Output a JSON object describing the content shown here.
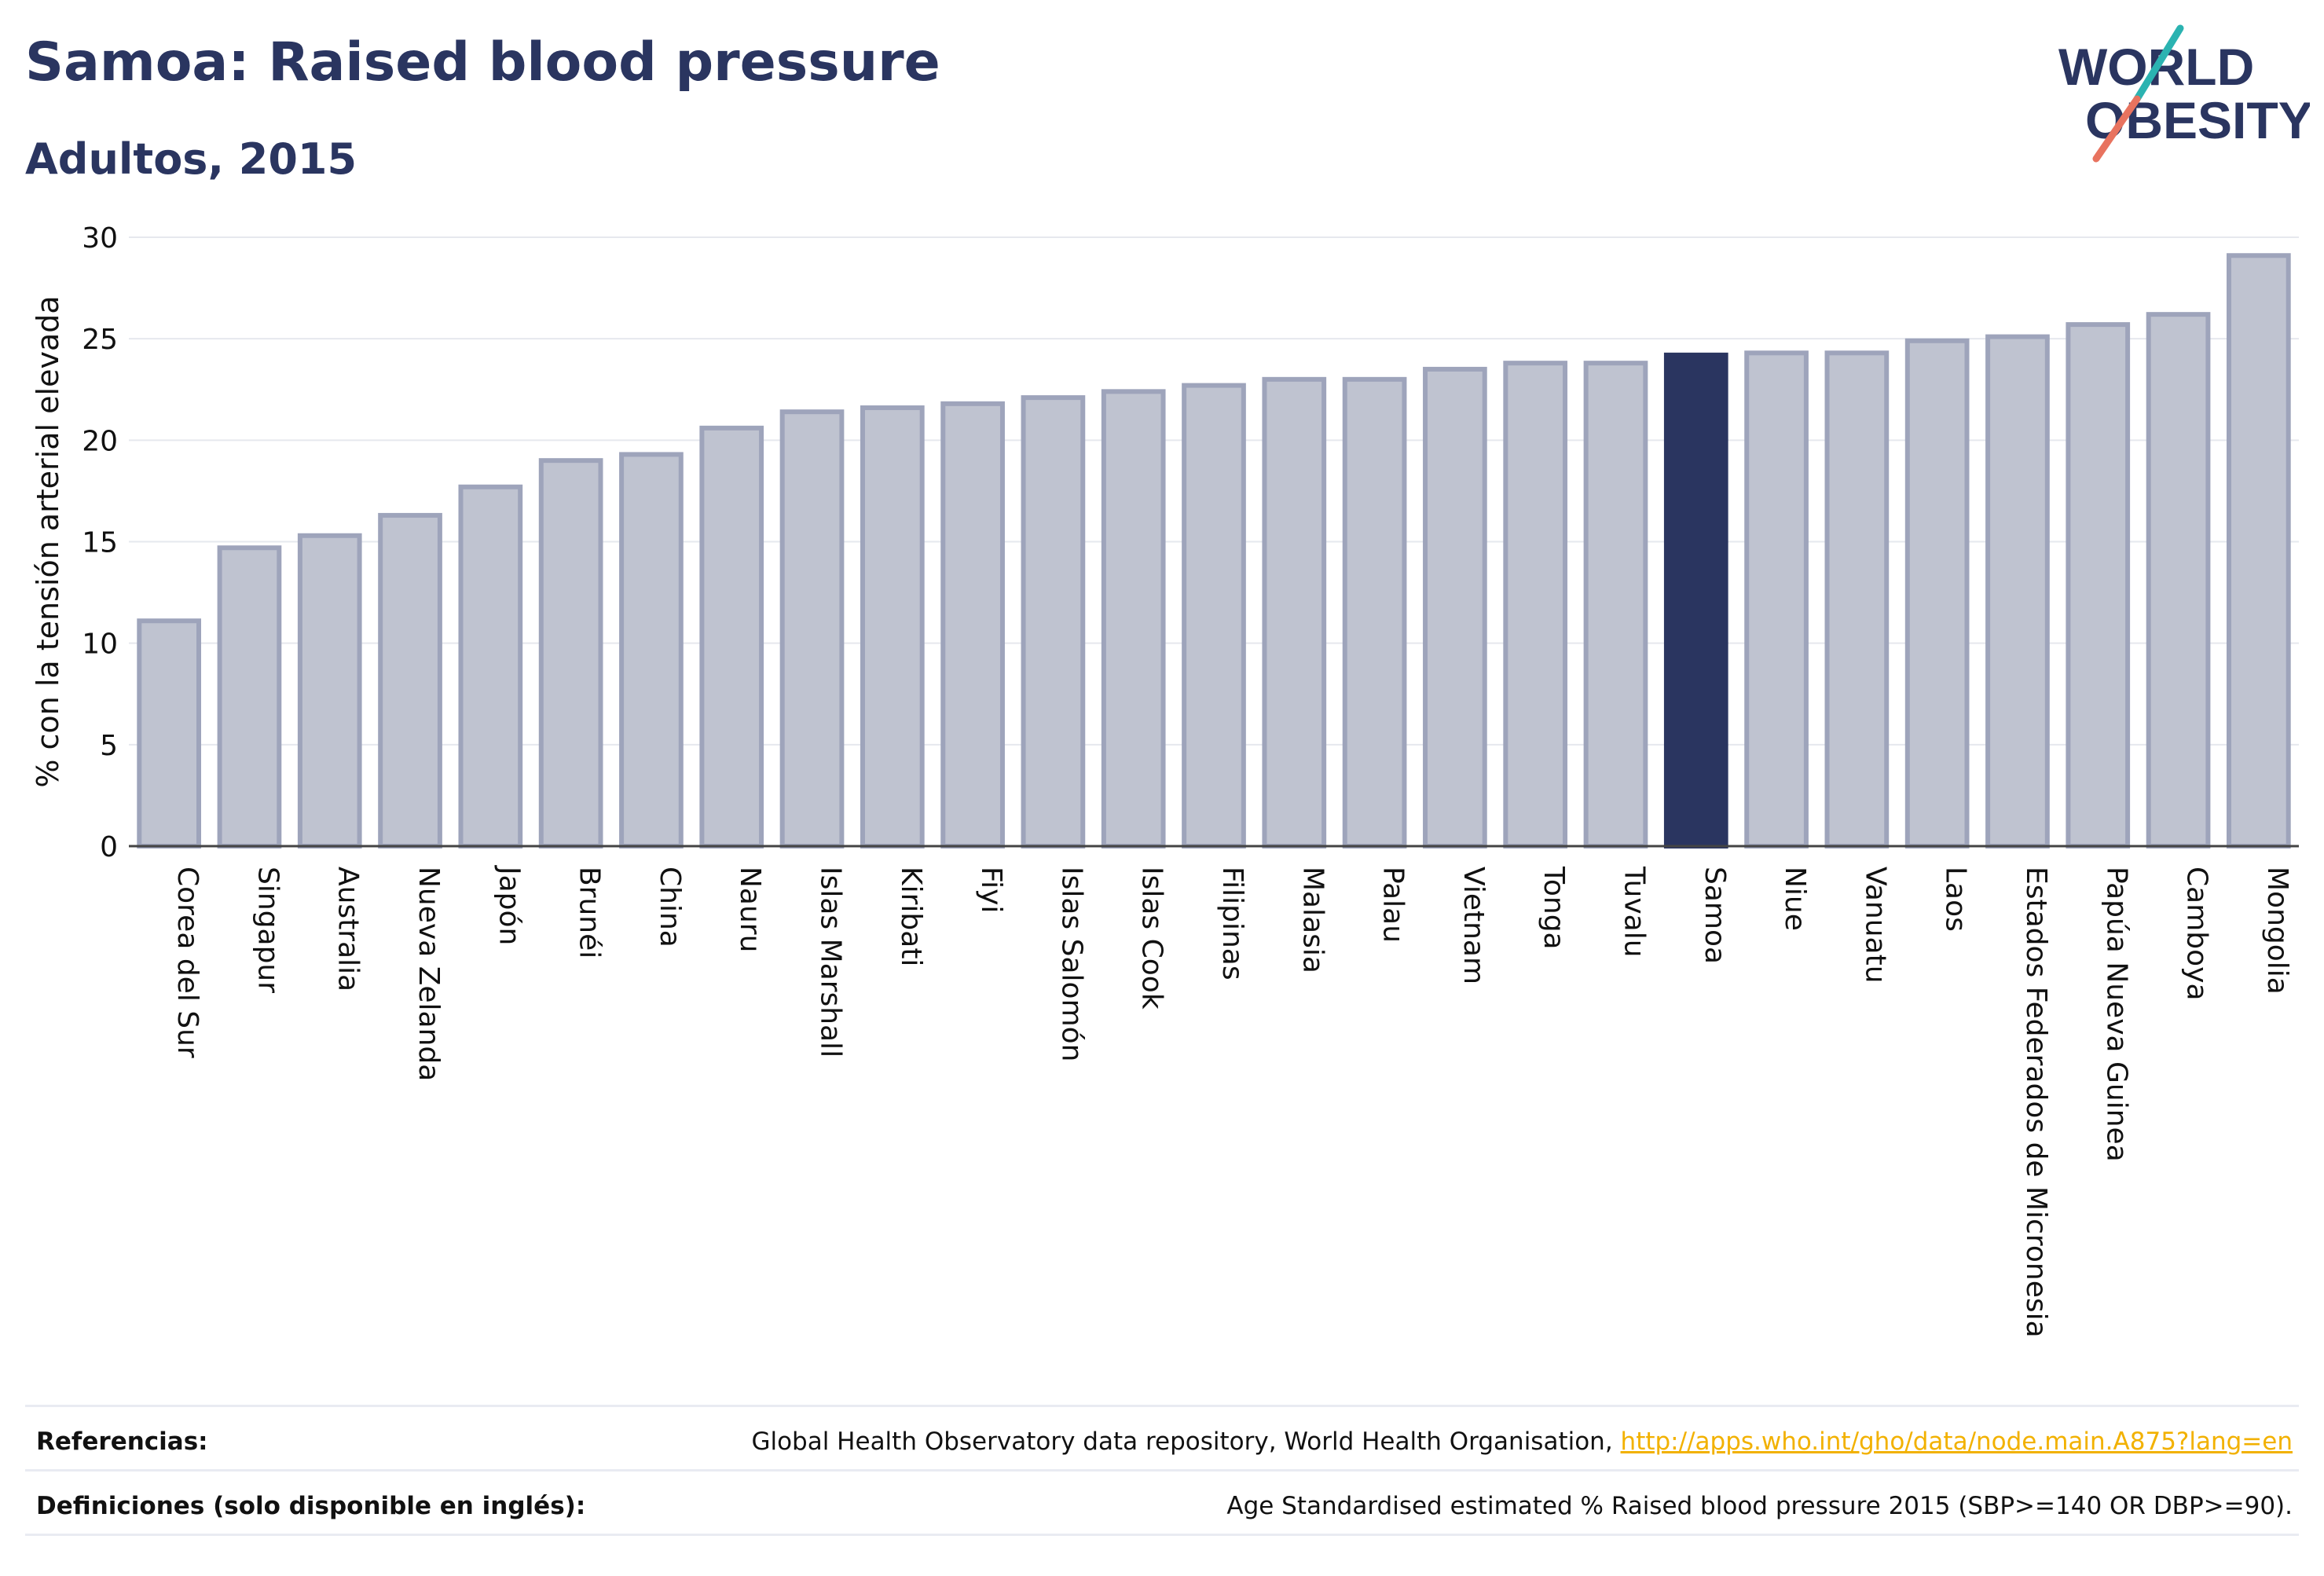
{
  "header": {
    "title": "Samoa: Raised blood pressure",
    "subtitle": "Adultos, 2015"
  },
  "logo": {
    "line1": "WORLD",
    "line2": "OBESITY",
    "colors": {
      "text": "#2a3560",
      "slash_teal": "#2bb3b1",
      "slash_coral": "#e8735f"
    }
  },
  "chart_data": {
    "type": "bar",
    "ylabel": "% con la tensión arterial elevada",
    "ylim": [
      0,
      30
    ],
    "yticks": [
      0,
      5,
      10,
      15,
      20,
      25,
      30
    ],
    "grid": true,
    "highlight": "Samoa",
    "colors": {
      "bar": "#bfc3d0",
      "bar_edge": "#9ea4bb",
      "highlight": "#2a3560"
    },
    "categories": [
      "Corea del Sur",
      "Singapur",
      "Australia",
      "Nueva Zelanda",
      "Japón",
      "Brunéi",
      "China",
      "Nauru",
      "Islas Marshall",
      "Kiribati",
      "Fiyi",
      "Islas Salomón",
      "Islas Cook",
      "Filipinas",
      "Malasia",
      "Palau",
      "Vietnam",
      "Tonga",
      "Tuvalu",
      "Samoa",
      "Niue",
      "Vanuatu",
      "Laos",
      "Estados Federados de Micronesia",
      "Papúa Nueva Guinea",
      "Camboya",
      "Mongolia"
    ],
    "values": [
      11.1,
      14.7,
      15.3,
      16.3,
      17.7,
      19.0,
      19.3,
      20.6,
      21.4,
      21.6,
      21.8,
      22.1,
      22.4,
      22.7,
      23.0,
      23.0,
      23.5,
      23.8,
      23.8,
      24.2,
      24.3,
      24.3,
      24.9,
      25.1,
      25.7,
      26.2,
      29.1
    ]
  },
  "footer": {
    "references_label": "Referencias:",
    "references_text": "Global Health Observatory data repository, World Health Organisation, ",
    "references_link": "http://apps.who.int/gho/data/node.main.A875?lang=en",
    "definitions_label": "Definiciones (solo disponible en inglés):",
    "definitions_text": "Age Standardised estimated % Raised blood pressure 2015 (SBP>=140 OR DBP>=90)."
  }
}
